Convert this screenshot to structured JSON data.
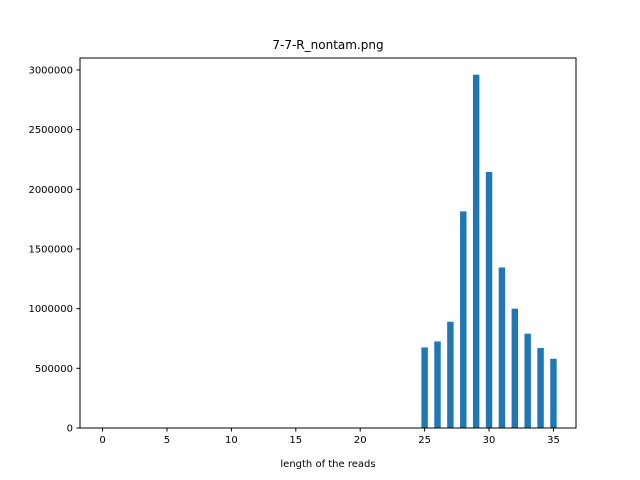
{
  "chart_data": {
    "type": "bar",
    "title": "7-7-R_nontam.png",
    "xlabel": "length of the reads",
    "ylabel": "",
    "xlim": [
      -1.75,
      36.75
    ],
    "ylim": [
      0,
      3100000
    ],
    "xticks": [
      0,
      5,
      10,
      15,
      20,
      25,
      30,
      35
    ],
    "yticks": [
      0,
      500000,
      1000000,
      1500000,
      2000000,
      2500000,
      3000000
    ],
    "xtick_labels": [
      "0",
      "5",
      "10",
      "15",
      "20",
      "25",
      "30",
      "35"
    ],
    "ytick_labels": [
      "0",
      "500000",
      "1000000",
      "1500000",
      "2000000",
      "2500000",
      "3000000"
    ],
    "bar_width": 0.5,
    "x": [
      25,
      26,
      27,
      28,
      29,
      30,
      31,
      32,
      33,
      34,
      35
    ],
    "values": [
      675000,
      725000,
      890000,
      1815000,
      2960000,
      2145000,
      1345000,
      1000000,
      790000,
      670000,
      580000
    ],
    "grid": false,
    "colors": {
      "bar": "#1f77b4",
      "axis": "#000000",
      "background": "#ffffff"
    }
  }
}
